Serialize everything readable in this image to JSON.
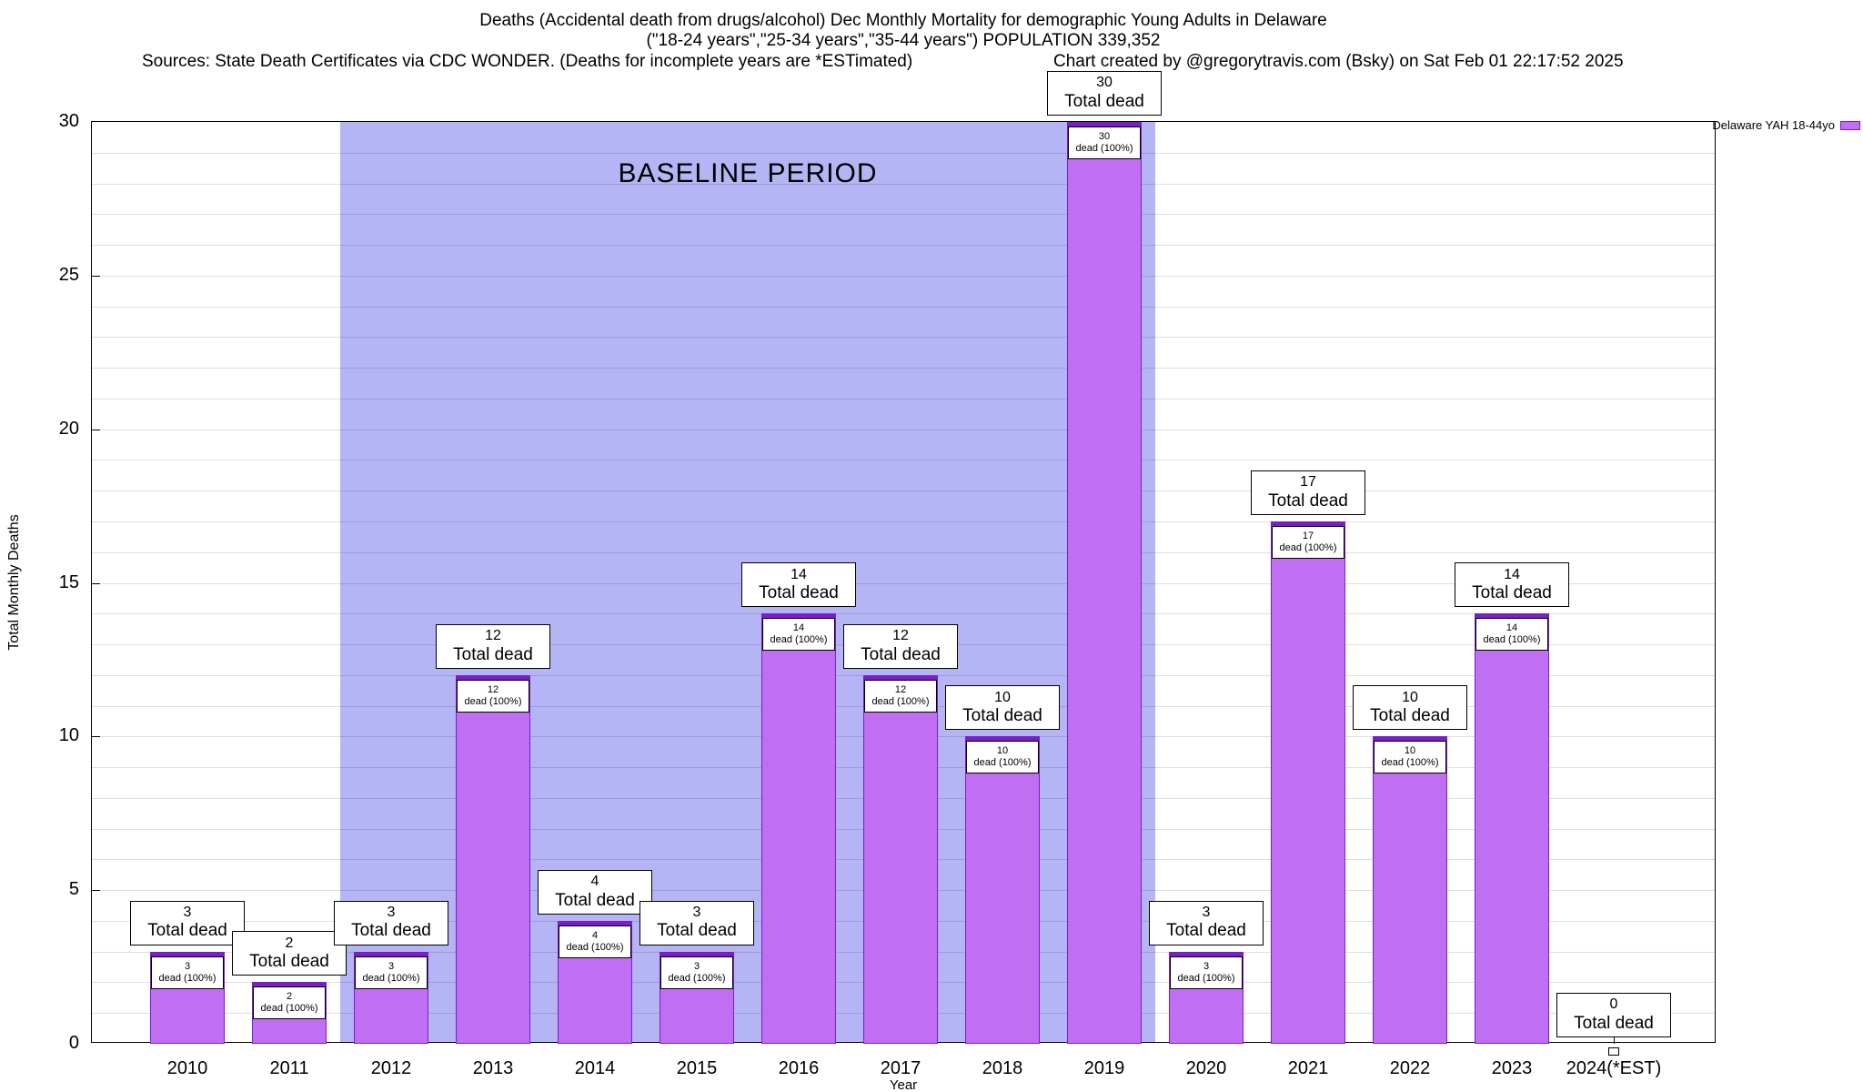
{
  "header": {
    "line1": "Deaths (Accidental death from drugs/alcohol) Dec Monthly Mortality for demographic Young Adults in Delaware",
    "line2": "(\"18-24 years\",\"25-34 years\",\"35-44 years\") POPULATION 339,352",
    "sources": "Sources: State Death Certificates via CDC WONDER. (Deaths for incomplete years are *ESTimated)",
    "credit": "Chart created by @gregorytravis.com (Bsky) on Sat Feb 01 22:17:52 2025"
  },
  "legend": {
    "label": "Delaware YAH 18-44yo"
  },
  "chart_data": {
    "type": "bar",
    "title": "Deaths (Accidental death from drugs/alcohol) Dec Monthly Mortality for demographic Young Adults in Delaware",
    "xlabel": "Year",
    "ylabel": "Total Monthly Deaths",
    "ylim": [
      0,
      30
    ],
    "yticks": [
      0,
      5,
      10,
      15,
      20,
      25,
      30
    ],
    "grid": true,
    "legend_position": "top-right",
    "categories": [
      "2010",
      "2011",
      "2012",
      "2013",
      "2014",
      "2015",
      "2016",
      "2017",
      "2018",
      "2019",
      "2020",
      "2021",
      "2022",
      "2023",
      "2024(*EST)"
    ],
    "values": [
      3,
      2,
      3,
      12,
      4,
      3,
      14,
      12,
      10,
      30,
      3,
      17,
      10,
      14,
      0
    ],
    "bar_label_suffix": "Total dead",
    "bar_inner_suffix": "dead (100%)",
    "baseline": {
      "label": "BASELINE PERIOD",
      "from": "2012",
      "to": "2019",
      "from_index": 2,
      "to_index": 9
    },
    "colors": {
      "bar_fill": "#c06ef2",
      "bar_border": "#7a1fc8",
      "baseline_band": "#b5b5f5",
      "grid": "rgba(0,0,0,0.13)"
    }
  }
}
